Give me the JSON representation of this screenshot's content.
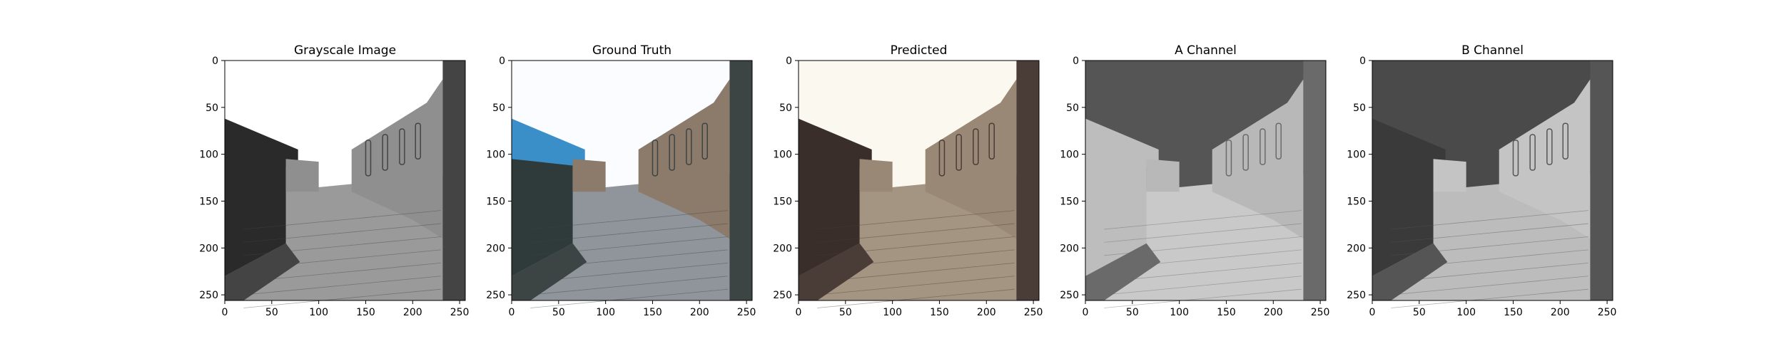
{
  "figure": {
    "background": "#ffffff",
    "axis_color": "#000000"
  },
  "chart_data": [
    {
      "type": "heatmap",
      "title": "Grayscale Image",
      "xlabel": "",
      "ylabel": "",
      "xlim": [
        0,
        256
      ],
      "ylim": [
        256,
        0
      ],
      "xticks": [
        0,
        50,
        100,
        150,
        200,
        250
      ],
      "yticks": [
        0,
        50,
        100,
        150,
        200,
        250
      ],
      "grid": false,
      "image_tones": {
        "sky": "#ffffff",
        "left_building": "#2a2a2a",
        "wall": "#8f8f8f",
        "pavement": "#9a9a9a",
        "shadow": "#444444"
      }
    },
    {
      "type": "heatmap",
      "title": "Ground Truth",
      "xlabel": "",
      "ylabel": "",
      "xlim": [
        0,
        256
      ],
      "ylim": [
        256,
        0
      ],
      "xticks": [
        0,
        50,
        100,
        150,
        200,
        250
      ],
      "yticks": [
        0,
        50,
        100,
        150,
        200,
        250
      ],
      "grid": false,
      "image_tones": {
        "sky": "#fbfcff",
        "left_building": "#2f3a3a",
        "roof": "#3b8fc9",
        "wall": "#8c7a6a",
        "pavement": "#8f959b",
        "shadow": "#3c4444"
      }
    },
    {
      "type": "heatmap",
      "title": "Predicted",
      "xlabel": "",
      "ylabel": "",
      "xlim": [
        0,
        256
      ],
      "ylim": [
        256,
        0
      ],
      "xticks": [
        0,
        50,
        100,
        150,
        200,
        250
      ],
      "yticks": [
        0,
        50,
        100,
        150,
        200,
        250
      ],
      "grid": false,
      "image_tones": {
        "sky": "#fbf8ef",
        "left_building": "#3a2e2a",
        "wall": "#9a8876",
        "pavement": "#a49482",
        "shadow": "#4a3c36"
      }
    },
    {
      "type": "heatmap",
      "title": "A Channel",
      "xlabel": "",
      "ylabel": "",
      "xlim": [
        0,
        256
      ],
      "ylim": [
        256,
        0
      ],
      "xticks": [
        0,
        50,
        100,
        150,
        200,
        250
      ],
      "yticks": [
        0,
        50,
        100,
        150,
        200,
        250
      ],
      "grid": false,
      "image_tones": {
        "sky": "#555555",
        "left_building": "#bdbdbd",
        "wall": "#b8b8b8",
        "pavement": "#c9c9c9",
        "shadow": "#6a6a6a"
      }
    },
    {
      "type": "heatmap",
      "title": "B Channel",
      "xlabel": "",
      "ylabel": "",
      "xlim": [
        0,
        256
      ],
      "ylim": [
        256,
        0
      ],
      "xticks": [
        0,
        50,
        100,
        150,
        200,
        250
      ],
      "yticks": [
        0,
        50,
        100,
        150,
        200,
        250
      ],
      "grid": false,
      "image_tones": {
        "sky": "#4a4a4a",
        "left_building": "#3a3a3a",
        "wall": "#c4c4c4",
        "pavement": "#bcbcbc",
        "shadow": "#555555"
      }
    }
  ]
}
